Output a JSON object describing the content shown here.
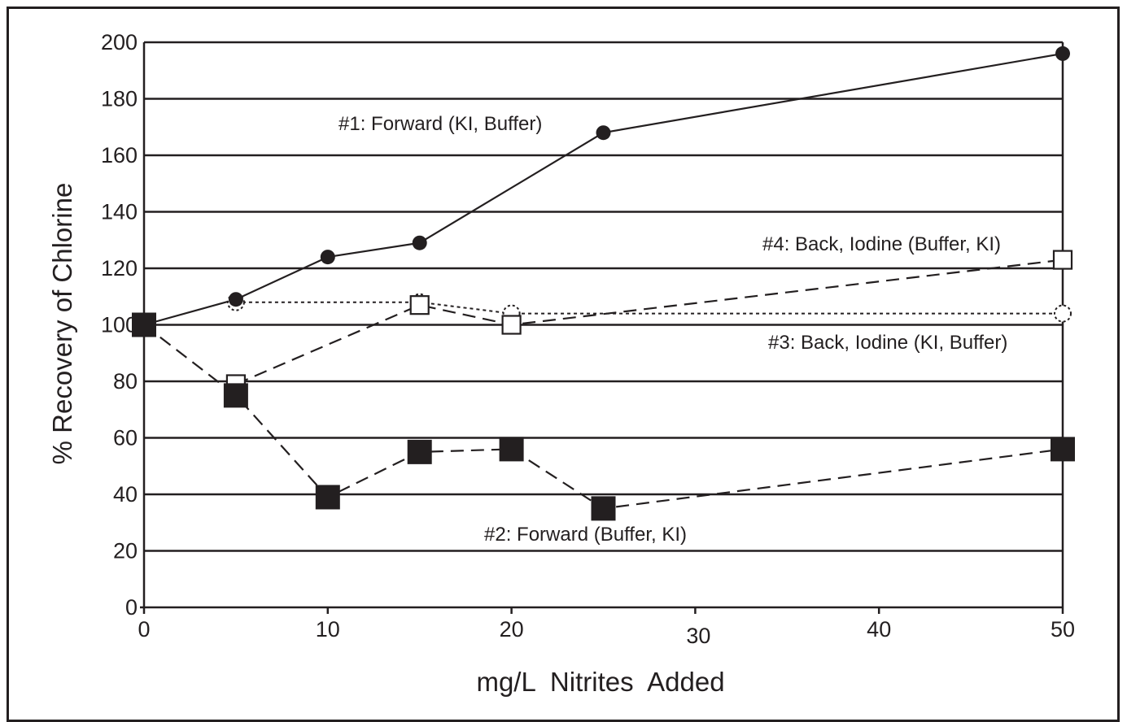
{
  "chart_data": {
    "type": "line",
    "xlabel": "mg/L  Nitrites  Added",
    "ylabel": "% Recovery of Chlorine",
    "xlim": [
      0,
      50
    ],
    "ylim": [
      0,
      200
    ],
    "x_ticks": [
      0,
      10,
      20,
      30,
      40,
      50
    ],
    "y_ticks": [
      0,
      20,
      40,
      60,
      80,
      100,
      120,
      140,
      160,
      180,
      200
    ],
    "grid": "horizontal",
    "colors": {
      "ink": "#231f20",
      "background": "#ffffff"
    },
    "series": [
      {
        "name": "#1: Forward (KI, Buffer)",
        "marker": "filled-circle",
        "line": "solid",
        "x": [
          0,
          5,
          10,
          15,
          25,
          50
        ],
        "y": [
          100,
          109,
          124,
          129,
          168,
          196
        ]
      },
      {
        "name": "#2: Forward (Buffer, KI)",
        "marker": "filled-square",
        "line": "dashed",
        "x": [
          0,
          5,
          10,
          15,
          20,
          25,
          50
        ],
        "y": [
          100,
          75,
          39,
          55,
          56,
          35,
          56
        ]
      },
      {
        "name": "#3: Back, Iodine (KI, Buffer)",
        "marker": "open-circle-dotted",
        "line": "dotted",
        "x": [
          5,
          15,
          20,
          50
        ],
        "y": [
          108,
          108,
          104,
          104
        ]
      },
      {
        "name": "#4: Back, Iodine (Buffer, KI)",
        "marker": "open-square",
        "line": "dashed",
        "x": [
          5,
          15,
          20,
          50
        ],
        "y": [
          79,
          107,
          100,
          123
        ]
      }
    ]
  }
}
